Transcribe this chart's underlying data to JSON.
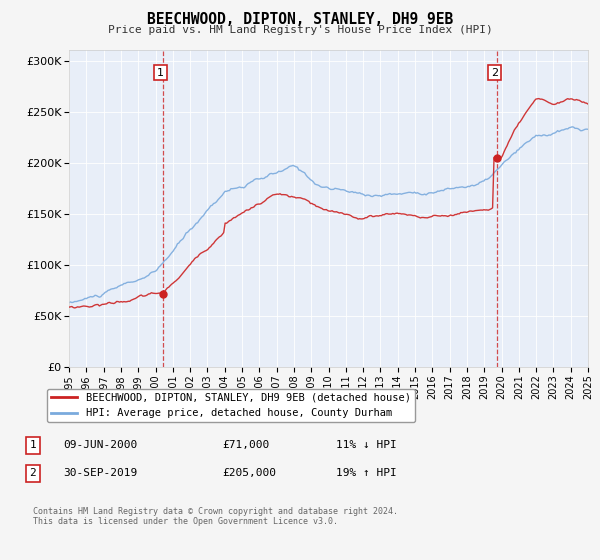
{
  "title": "BEECHWOOD, DIPTON, STANLEY, DH9 9EB",
  "subtitle": "Price paid vs. HM Land Registry's House Price Index (HPI)",
  "background_color": "#f5f5f5",
  "plot_bg_color": "#e8eef8",
  "red_color": "#cc2222",
  "blue_color": "#7aaadd",
  "ylim": [
    0,
    310000
  ],
  "yticks": [
    0,
    50000,
    100000,
    150000,
    200000,
    250000,
    300000
  ],
  "ytick_labels": [
    "£0",
    "£50K",
    "£100K",
    "£150K",
    "£200K",
    "£250K",
    "£300K"
  ],
  "xmin": 1995,
  "xmax": 2025,
  "sale1_x": 2000.44,
  "sale1_y": 71000,
  "sale2_x": 2019.75,
  "sale2_y": 205000,
  "legend_red_label": "BEECHWOOD, DIPTON, STANLEY, DH9 9EB (detached house)",
  "legend_blue_label": "HPI: Average price, detached house, County Durham",
  "table_row1_num": "1",
  "table_row1_date": "09-JUN-2000",
  "table_row1_price": "£71,000",
  "table_row1_hpi": "11% ↓ HPI",
  "table_row2_num": "2",
  "table_row2_date": "30-SEP-2019",
  "table_row2_price": "£205,000",
  "table_row2_hpi": "19% ↑ HPI",
  "footer": "Contains HM Land Registry data © Crown copyright and database right 2024.\nThis data is licensed under the Open Government Licence v3.0."
}
